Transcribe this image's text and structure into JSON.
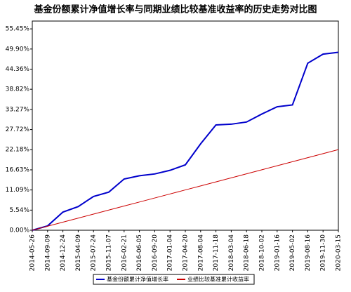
{
  "chart_data": {
    "type": "line",
    "title": "基金份额累计净值增长率与同期业绩比较基准收益率的历史走势对比图",
    "categories": [
      "2014-05-26",
      "2014-09-09",
      "2014-12-24",
      "2015-04-09",
      "2015-07-24",
      "2015-11-07",
      "2016-02-21",
      "2016-06-05",
      "2016-09-20",
      "2017-01-04",
      "2017-04-20",
      "2017-08-04",
      "2017-11-18",
      "2018-03-04",
      "2018-06-18",
      "2018-10-02",
      "2019-01-16",
      "2019-05-02",
      "2019-08-16",
      "2019-11-30",
      "2020-03-15"
    ],
    "series": [
      {
        "name": "基金份额累计净值增长率",
        "color": "#0000cc",
        "values": [
          0,
          1.2,
          5.0,
          6.5,
          9.3,
          10.5,
          14.1,
          15.0,
          15.5,
          16.5,
          18.0,
          23.8,
          29.0,
          29.2,
          29.8,
          32.0,
          34.0,
          34.5,
          46.0,
          48.5,
          49.0
        ]
      },
      {
        "name": "业绩比较基准累计收益率",
        "color": "#cc0000",
        "values": [
          0,
          1.11,
          2.22,
          3.33,
          4.44,
          5.55,
          6.66,
          7.77,
          8.88,
          9.99,
          11.1,
          12.21,
          13.32,
          14.43,
          15.54,
          16.65,
          17.76,
          18.87,
          19.98,
          21.09,
          22.2
        ]
      }
    ],
    "ylim": [
      0,
      57.6
    ],
    "yticks": [
      {
        "value": 0,
        "label": "0.00%"
      },
      {
        "value": 5.54,
        "label": "5.54%"
      },
      {
        "value": 11.09,
        "label": "11.09%"
      },
      {
        "value": 16.63,
        "label": "16.63%"
      },
      {
        "value": 22.18,
        "label": "22.18%"
      },
      {
        "value": 27.72,
        "label": "27.72%"
      },
      {
        "value": 33.27,
        "label": "33.27%"
      },
      {
        "value": 38.82,
        "label": "38.82%"
      },
      {
        "value": 44.36,
        "label": "44.36%"
      },
      {
        "value": 49.9,
        "label": "49.90%"
      },
      {
        "value": 55.45,
        "label": "55.45%"
      }
    ]
  }
}
